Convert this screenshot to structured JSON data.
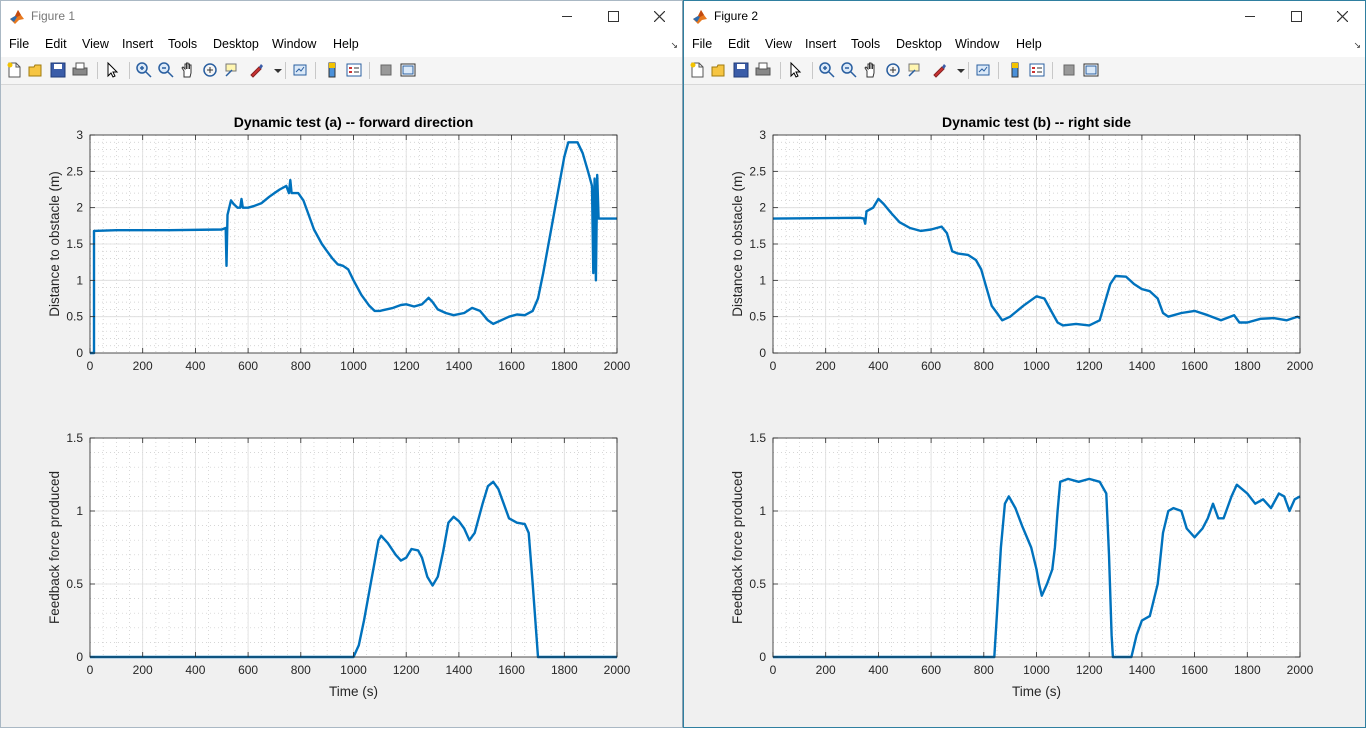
{
  "menu_items": [
    "File",
    "Edit",
    "View",
    "Insert",
    "Tools",
    "Desktop",
    "Window",
    "Help"
  ],
  "colors": {
    "line": "#0072bd",
    "axes_bg": "#ffffff",
    "figure_bg": "#f0f0f0"
  },
  "toolbar_icons": [
    "new-figure-icon",
    "open-file-icon",
    "save-icon",
    "print-icon",
    "pointer-icon",
    "zoom-in-icon",
    "zoom-out-icon",
    "pan-hand-icon",
    "rotate-3d-icon",
    "data-cursor-icon",
    "brush-icon",
    "brush-dropdown-icon",
    "link-plot-icon",
    "colorbar-icon",
    "legend-icon",
    "hide-plot-tools-icon",
    "show-plot-tools-icon"
  ],
  "windows": [
    {
      "title": "Figure 1",
      "plots": [
        {
          "title": "Dynamic test (a) -- forward direction",
          "xlabel": "",
          "ylabel": "Distance to obstacle (m)",
          "xlim": [
            0,
            2000
          ],
          "ylim": [
            0,
            3
          ],
          "xticks": [
            0,
            200,
            400,
            600,
            800,
            1000,
            1200,
            1400,
            1600,
            1800,
            2000
          ],
          "yticks": [
            0,
            0.5,
            1,
            1.5,
            2,
            2.5,
            3
          ],
          "points": [
            [
              0,
              0
            ],
            [
              15,
              0
            ],
            [
              15,
              1.68
            ],
            [
              100,
              1.69
            ],
            [
              300,
              1.69
            ],
            [
              500,
              1.7
            ],
            [
              515,
              1.72
            ],
            [
              518,
              1.2
            ],
            [
              522,
              1.9
            ],
            [
              535,
              2.1
            ],
            [
              545,
              2.05
            ],
            [
              560,
              2.0
            ],
            [
              570,
              2.0
            ],
            [
              575,
              2.12
            ],
            [
              580,
              2.0
            ],
            [
              600,
              2.0
            ],
            [
              620,
              2.02
            ],
            [
              650,
              2.06
            ],
            [
              680,
              2.15
            ],
            [
              700,
              2.2
            ],
            [
              720,
              2.25
            ],
            [
              745,
              2.3
            ],
            [
              755,
              2.2
            ],
            [
              760,
              2.38
            ],
            [
              765,
              2.2
            ],
            [
              790,
              2.2
            ],
            [
              810,
              2.1
            ],
            [
              830,
              1.9
            ],
            [
              850,
              1.7
            ],
            [
              880,
              1.5
            ],
            [
              900,
              1.4
            ],
            [
              920,
              1.3
            ],
            [
              940,
              1.22
            ],
            [
              960,
              1.2
            ],
            [
              980,
              1.15
            ],
            [
              1000,
              1.0
            ],
            [
              1030,
              0.8
            ],
            [
              1060,
              0.65
            ],
            [
              1080,
              0.58
            ],
            [
              1100,
              0.58
            ],
            [
              1150,
              0.62
            ],
            [
              1180,
              0.66
            ],
            [
              1200,
              0.67
            ],
            [
              1230,
              0.64
            ],
            [
              1260,
              0.67
            ],
            [
              1285,
              0.76
            ],
            [
              1300,
              0.7
            ],
            [
              1320,
              0.6
            ],
            [
              1350,
              0.55
            ],
            [
              1380,
              0.52
            ],
            [
              1420,
              0.55
            ],
            [
              1450,
              0.62
            ],
            [
              1480,
              0.58
            ],
            [
              1510,
              0.45
            ],
            [
              1530,
              0.4
            ],
            [
              1560,
              0.45
            ],
            [
              1590,
              0.5
            ],
            [
              1620,
              0.53
            ],
            [
              1650,
              0.52
            ],
            [
              1680,
              0.58
            ],
            [
              1700,
              0.75
            ],
            [
              1720,
              1.1
            ],
            [
              1740,
              1.5
            ],
            [
              1760,
              1.9
            ],
            [
              1780,
              2.3
            ],
            [
              1800,
              2.7
            ],
            [
              1815,
              2.9
            ],
            [
              1850,
              2.9
            ],
            [
              1870,
              2.75
            ],
            [
              1890,
              2.5
            ],
            [
              1905,
              2.3
            ],
            [
              1910,
              1.1
            ],
            [
              1915,
              2.4
            ],
            [
              1920,
              1.0
            ],
            [
              1925,
              2.45
            ],
            [
              1930,
              1.85
            ],
            [
              2000,
              1.85
            ]
          ]
        },
        {
          "title": "",
          "xlabel": "Time (s)",
          "ylabel": "Feedback force produced",
          "xlim": [
            0,
            2000
          ],
          "ylim": [
            0,
            1.5
          ],
          "xticks": [
            0,
            200,
            400,
            600,
            800,
            1000,
            1200,
            1400,
            1600,
            1800,
            2000
          ],
          "yticks": [
            0,
            0.5,
            1,
            1.5
          ],
          "points": [
            [
              0,
              0
            ],
            [
              1000,
              0
            ],
            [
              1020,
              0.08
            ],
            [
              1040,
              0.25
            ],
            [
              1060,
              0.45
            ],
            [
              1080,
              0.65
            ],
            [
              1095,
              0.8
            ],
            [
              1105,
              0.83
            ],
            [
              1130,
              0.78
            ],
            [
              1160,
              0.7
            ],
            [
              1180,
              0.66
            ],
            [
              1200,
              0.68
            ],
            [
              1220,
              0.74
            ],
            [
              1245,
              0.73
            ],
            [
              1260,
              0.68
            ],
            [
              1280,
              0.55
            ],
            [
              1300,
              0.49
            ],
            [
              1320,
              0.55
            ],
            [
              1340,
              0.72
            ],
            [
              1360,
              0.92
            ],
            [
              1380,
              0.96
            ],
            [
              1400,
              0.93
            ],
            [
              1420,
              0.88
            ],
            [
              1440,
              0.8
            ],
            [
              1460,
              0.85
            ],
            [
              1490,
              1.05
            ],
            [
              1510,
              1.17
            ],
            [
              1530,
              1.2
            ],
            [
              1550,
              1.15
            ],
            [
              1570,
              1.05
            ],
            [
              1590,
              0.95
            ],
            [
              1620,
              0.92
            ],
            [
              1650,
              0.91
            ],
            [
              1665,
              0.85
            ],
            [
              1680,
              0.5
            ],
            [
              1700,
              0
            ],
            [
              2000,
              0
            ]
          ]
        }
      ]
    },
    {
      "title": "Figure 2",
      "plots": [
        {
          "title": "Dynamic test (b) -- right side",
          "xlabel": "",
          "ylabel": "Distance to obstacle (m)",
          "xlim": [
            0,
            2000
          ],
          "ylim": [
            0,
            3
          ],
          "xticks": [
            0,
            200,
            400,
            600,
            800,
            1000,
            1200,
            1400,
            1600,
            1800,
            2000
          ],
          "yticks": [
            0,
            0.5,
            1,
            1.5,
            2,
            2.5,
            3
          ],
          "points": [
            [
              0,
              1.85
            ],
            [
              330,
              1.86
            ],
            [
              345,
              1.85
            ],
            [
              350,
              1.78
            ],
            [
              355,
              1.95
            ],
            [
              380,
              2.0
            ],
            [
              400,
              2.12
            ],
            [
              420,
              2.05
            ],
            [
              450,
              1.92
            ],
            [
              480,
              1.8
            ],
            [
              520,
              1.72
            ],
            [
              560,
              1.68
            ],
            [
              600,
              1.7
            ],
            [
              640,
              1.74
            ],
            [
              660,
              1.65
            ],
            [
              680,
              1.4
            ],
            [
              700,
              1.37
            ],
            [
              740,
              1.35
            ],
            [
              770,
              1.28
            ],
            [
              790,
              1.15
            ],
            [
              810,
              0.9
            ],
            [
              830,
              0.65
            ],
            [
              850,
              0.55
            ],
            [
              870,
              0.45
            ],
            [
              900,
              0.5
            ],
            [
              950,
              0.65
            ],
            [
              1000,
              0.78
            ],
            [
              1030,
              0.75
            ],
            [
              1060,
              0.55
            ],
            [
              1080,
              0.42
            ],
            [
              1100,
              0.38
            ],
            [
              1150,
              0.4
            ],
            [
              1200,
              0.38
            ],
            [
              1240,
              0.45
            ],
            [
              1260,
              0.7
            ],
            [
              1280,
              0.95
            ],
            [
              1300,
              1.06
            ],
            [
              1340,
              1.05
            ],
            [
              1370,
              0.95
            ],
            [
              1400,
              0.88
            ],
            [
              1430,
              0.85
            ],
            [
              1460,
              0.75
            ],
            [
              1480,
              0.55
            ],
            [
              1500,
              0.5
            ],
            [
              1550,
              0.55
            ],
            [
              1600,
              0.58
            ],
            [
              1650,
              0.52
            ],
            [
              1700,
              0.45
            ],
            [
              1750,
              0.52
            ],
            [
              1770,
              0.42
            ],
            [
              1800,
              0.42
            ],
            [
              1850,
              0.47
            ],
            [
              1900,
              0.48
            ],
            [
              1950,
              0.45
            ],
            [
              1990,
              0.5
            ],
            [
              2000,
              0.48
            ]
          ]
        },
        {
          "title": "",
          "xlabel": "Time (s)",
          "ylabel": "Feedback force produced",
          "xlim": [
            0,
            2000
          ],
          "ylim": [
            0,
            1.5
          ],
          "xticks": [
            0,
            200,
            400,
            600,
            800,
            1000,
            1200,
            1400,
            1600,
            1800,
            2000
          ],
          "yticks": [
            0,
            0.5,
            1,
            1.5
          ],
          "points": [
            [
              0,
              0
            ],
            [
              840,
              0
            ],
            [
              850,
              0.3
            ],
            [
              865,
              0.75
            ],
            [
              880,
              1.05
            ],
            [
              895,
              1.1
            ],
            [
              920,
              1.02
            ],
            [
              945,
              0.9
            ],
            [
              980,
              0.75
            ],
            [
              1000,
              0.6
            ],
            [
              1010,
              0.5
            ],
            [
              1020,
              0.42
            ],
            [
              1040,
              0.5
            ],
            [
              1060,
              0.6
            ],
            [
              1070,
              0.75
            ],
            [
              1080,
              1.0
            ],
            [
              1090,
              1.2
            ],
            [
              1120,
              1.22
            ],
            [
              1160,
              1.2
            ],
            [
              1200,
              1.22
            ],
            [
              1240,
              1.2
            ],
            [
              1265,
              1.12
            ],
            [
              1275,
              0.7
            ],
            [
              1285,
              0.15
            ],
            [
              1290,
              0
            ],
            [
              1360,
              0
            ],
            [
              1380,
              0.15
            ],
            [
              1400,
              0.25
            ],
            [
              1430,
              0.28
            ],
            [
              1460,
              0.5
            ],
            [
              1480,
              0.85
            ],
            [
              1500,
              1.0
            ],
            [
              1520,
              1.02
            ],
            [
              1550,
              1.0
            ],
            [
              1570,
              0.88
            ],
            [
              1600,
              0.82
            ],
            [
              1630,
              0.88
            ],
            [
              1650,
              0.95
            ],
            [
              1670,
              1.05
            ],
            [
              1690,
              0.95
            ],
            [
              1710,
              0.95
            ],
            [
              1740,
              1.1
            ],
            [
              1760,
              1.18
            ],
            [
              1780,
              1.15
            ],
            [
              1800,
              1.12
            ],
            [
              1830,
              1.05
            ],
            [
              1860,
              1.08
            ],
            [
              1890,
              1.02
            ],
            [
              1920,
              1.12
            ],
            [
              1940,
              1.1
            ],
            [
              1960,
              1.0
            ],
            [
              1980,
              1.08
            ],
            [
              2000,
              1.1
            ]
          ]
        }
      ]
    }
  ]
}
